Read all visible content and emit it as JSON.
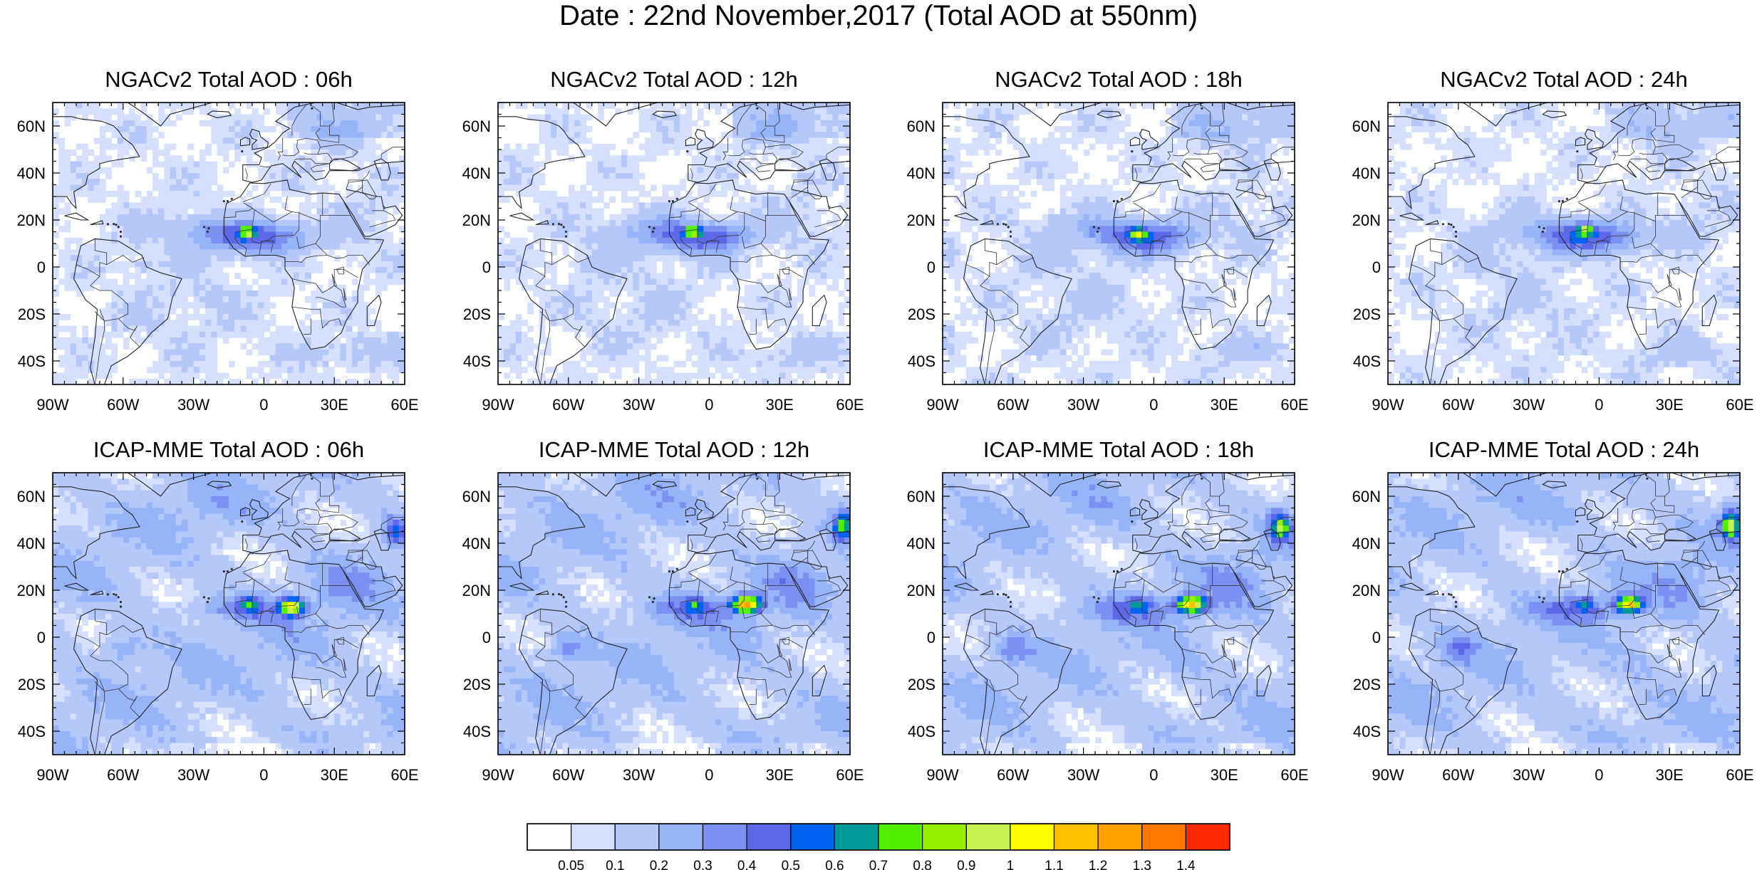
{
  "figure": {
    "title": "Date : 22nd November,2017 (Total AOD at 550nm)"
  },
  "panels": [
    {
      "title": "NGACv2 Total AOD : 06h",
      "model": "NGACv2",
      "hour": "06h"
    },
    {
      "title": "NGACv2 Total AOD : 12h",
      "model": "NGACv2",
      "hour": "12h"
    },
    {
      "title": "NGACv2 Total AOD : 18h",
      "model": "NGACv2",
      "hour": "18h"
    },
    {
      "title": "NGACv2 Total AOD : 24h",
      "model": "NGACv2",
      "hour": "24h"
    },
    {
      "title": "ICAP-MME Total AOD : 06h",
      "model": "ICAP-MME",
      "hour": "06h"
    },
    {
      "title": "ICAP-MME Total AOD : 12h",
      "model": "ICAP-MME",
      "hour": "12h"
    },
    {
      "title": "ICAP-MME Total AOD : 18h",
      "model": "ICAP-MME",
      "hour": "18h"
    },
    {
      "title": "ICAP-MME Total AOD : 24h",
      "model": "ICAP-MME",
      "hour": "24h"
    }
  ],
  "axes": {
    "lon_labels": [
      "90W",
      "60W",
      "30W",
      "0",
      "30E",
      "60E"
    ],
    "lon_values": [
      -90,
      -60,
      -30,
      0,
      30,
      60
    ],
    "lat_labels": [
      "60N",
      "40N",
      "20N",
      "0",
      "20S",
      "40S"
    ],
    "lat_values": [
      60,
      40,
      20,
      0,
      -20,
      -40
    ],
    "lon_range": [
      -90,
      60
    ],
    "lat_range": [
      -50,
      70
    ]
  },
  "colorbar": {
    "labels": [
      "0.05",
      "0.1",
      "0.2",
      "0.3",
      "0.4",
      "0.5",
      "0.6",
      "0.7",
      "0.8",
      "0.9",
      "1",
      "1.1",
      "1.2",
      "1.3",
      "1.4"
    ],
    "colors": [
      "#ffffff",
      "#d6e0fc",
      "#b4c8fa",
      "#98b4f8",
      "#7c90f2",
      "#5c68e8",
      "#0064f0",
      "#009a9a",
      "#50f000",
      "#96f000",
      "#c8f050",
      "#ffff00",
      "#ffc000",
      "#ffa000",
      "#ff7800",
      "#ff2800"
    ]
  }
}
